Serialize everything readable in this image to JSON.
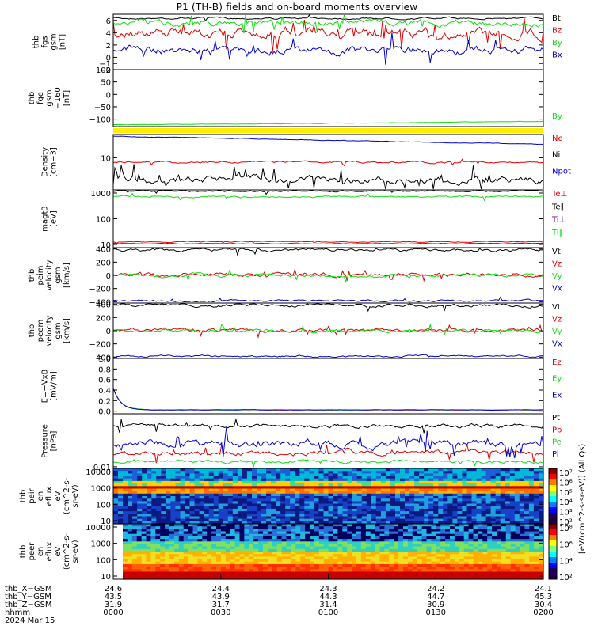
{
  "title": "P1 (TH-B) fields and on-board moments overview",
  "colors": {
    "black": "#000000",
    "red": "#dd0000",
    "green": "#11dd11",
    "blue": "#0000cc",
    "yellow": "#ffee00",
    "purple": "#7700aa"
  },
  "chart_data": [
    {
      "type": "line",
      "panel": "fgs",
      "ylabel": [
        "thb",
        "fgs",
        "gsm",
        "[nT]"
      ],
      "ylim": [
        -2,
        7
      ],
      "yticks": [
        6,
        4,
        2,
        0,
        -1,
        -2
      ],
      "ytick_labels": [
        "6",
        "4",
        "2",
        "0",
        "−1",
        "−2"
      ],
      "series": [
        {
          "name": "Bt",
          "color": "black",
          "base": 5.7,
          "noise": 0.15
        },
        {
          "name": "Bz",
          "color": "red",
          "base": 2.5,
          "noise": 2.2
        },
        {
          "name": "By",
          "color": "green",
          "base": 5.4,
          "noise": 0.8
        },
        {
          "name": "Bx",
          "color": "blue",
          "base": 0.6,
          "noise": 1.3
        }
      ]
    },
    {
      "type": "line",
      "panel": "fge-dsl",
      "ylabel": [
        "thb",
        "fge",
        "gsm",
        "−160",
        "[nT]"
      ],
      "ylim": [
        -130,
        100
      ],
      "yticks": [
        100,
        50,
        0,
        -50,
        -100
      ],
      "ytick_labels": [
        "100",
        "50",
        "0",
        "−50",
        "−100"
      ],
      "series": [
        {
          "name": "By",
          "color": "green",
          "start": -125,
          "end": -110
        }
      ]
    },
    {
      "type": "line",
      "panel": "density",
      "ylabel": [
        "Density",
        "[cm−3]"
      ],
      "yticks": [
        10
      ],
      "ytick_labels": [
        "10"
      ],
      "series": [
        {
          "name": "Ne",
          "color": "red"
        },
        {
          "name": "Ni",
          "color": "black"
        },
        {
          "name": "Npot",
          "color": "blue"
        }
      ]
    },
    {
      "type": "line",
      "panel": "temperature",
      "ylabel": [
        "magt3",
        "[eV]"
      ],
      "yticks": [
        1000,
        100,
        10
      ],
      "ytick_labels": [
        "1000",
        "100",
        "10"
      ],
      "series": [
        {
          "name": "Te⊥",
          "color": "red"
        },
        {
          "name": "Te∥",
          "color": "black"
        },
        {
          "name": "Ti⊥",
          "color": "purple"
        },
        {
          "name": "Ti∥",
          "color": "green"
        }
      ]
    },
    {
      "type": "line",
      "panel": "peim-velocity",
      "ylabel": [
        "thb",
        "peim",
        "velocity",
        "gsm",
        "[km/s]"
      ],
      "ylim": [
        -420,
        420
      ],
      "yticks": [
        400,
        200,
        0,
        -200,
        -400
      ],
      "ytick_labels": [
        "400",
        "200",
        "0",
        "−200",
        "−400"
      ],
      "series": [
        {
          "name": "Vt",
          "color": "black",
          "base": 390
        },
        {
          "name": "Vz",
          "color": "red",
          "base": 0
        },
        {
          "name": "Vy",
          "color": "green",
          "base": -10
        },
        {
          "name": "Vx",
          "color": "blue",
          "base": -385
        }
      ]
    },
    {
      "type": "line",
      "panel": "peem-velocity",
      "ylabel": [
        "thb",
        "peem",
        "velocity",
        "gsm",
        "[km/s]"
      ],
      "ylim": [
        -420,
        420
      ],
      "yticks": [
        400,
        200,
        0,
        -200,
        -400
      ],
      "ytick_labels": [
        "400",
        "200",
        "0",
        "−200",
        "−400"
      ],
      "series": [
        {
          "name": "Vt",
          "color": "black",
          "base": 395
        },
        {
          "name": "Vz",
          "color": "red",
          "base": 0
        },
        {
          "name": "Vy",
          "color": "green",
          "base": -5
        },
        {
          "name": "Vx",
          "color": "blue",
          "base": -390
        }
      ]
    },
    {
      "type": "line",
      "panel": "efield",
      "ylabel": [
        "E=−VxB",
        "[mV/m]"
      ],
      "ylim": [
        -0.05,
        1.0
      ],
      "yticks": [
        1.0,
        0.8,
        0.6,
        0.4,
        0.2,
        0.0
      ],
      "ytick_labels": [
        "1.0",
        "0.8",
        "0.6",
        "0.4",
        "0.2",
        "0.0"
      ],
      "series": [
        {
          "name": "Ez",
          "color": "red"
        },
        {
          "name": "Ey",
          "color": "green"
        },
        {
          "name": "Ex",
          "color": "blue"
        }
      ]
    },
    {
      "type": "line",
      "panel": "pressure",
      "ylabel": [
        "Pressure",
        "[nPa]"
      ],
      "yticks": [
        0.01
      ],
      "ytick_labels": [
        "0.01"
      ],
      "series": [
        {
          "name": "Pt",
          "color": "black"
        },
        {
          "name": "Pb",
          "color": "red"
        },
        {
          "name": "Pe",
          "color": "green"
        },
        {
          "name": "Pi",
          "color": "blue"
        }
      ]
    },
    {
      "type": "heatmap",
      "panel": "peir-eflux",
      "ylabel": [
        "thb",
        "peir",
        "en",
        "eflux",
        "eV",
        "(cm^2-s-",
        "sr-eV)"
      ],
      "yticks": [
        10000,
        1000,
        100,
        10
      ],
      "ytick_labels": [
        "10000",
        "1000",
        "100",
        "10"
      ],
      "colorbar_ticks": [
        "10⁷",
        "10⁶",
        "10⁵",
        "10⁴",
        "10³",
        "10²"
      ]
    },
    {
      "type": "heatmap",
      "panel": "peer-eflux",
      "ylabel": [
        "thb",
        "peer",
        "en",
        "eflux",
        "eV",
        "(cm^2-s-",
        "sr-eV)"
      ],
      "yticks": [
        10000,
        1000,
        100,
        10
      ],
      "ytick_labels": [
        "10000",
        "1000",
        "100",
        "10"
      ],
      "colorbar_ticks": [
        "10⁸",
        "10⁶",
        "10⁴",
        "10²"
      ]
    }
  ],
  "colorbar_label": "[eV/(cm^2-s-sr-eV)] (All Qs)",
  "xaxis": {
    "rows": [
      {
        "label": "thb_X−GSM",
        "values": [
          "24.6",
          "24.4",
          "24.3",
          "24.2",
          "24.1"
        ]
      },
      {
        "label": "thb_Y−GSM",
        "values": [
          "43.5",
          "43.9",
          "44.3",
          "44.7",
          "45.3"
        ]
      },
      {
        "label": "thb_Z−GSM",
        "values": [
          "31.9",
          "31.7",
          "31.4",
          "30.9",
          "30.4"
        ]
      },
      {
        "label": "hhmm",
        "values": [
          "0000",
          "0030",
          "0100",
          "0130",
          "0200"
        ]
      },
      {
        "label": "2024 Mar 15",
        "values": []
      }
    ]
  }
}
